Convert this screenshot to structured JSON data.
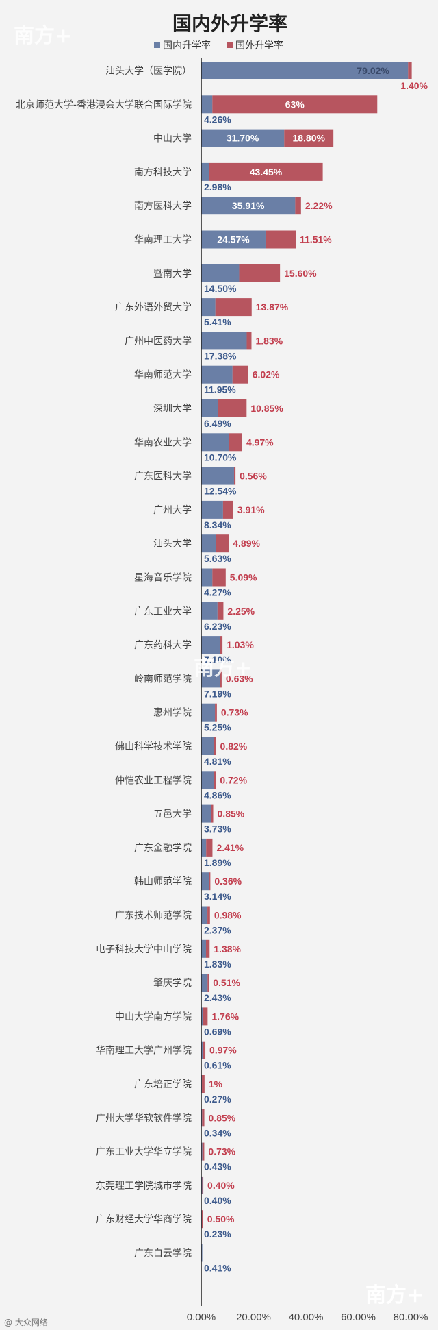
{
  "colors": {
    "domestic": "#6a7fa6",
    "foreign": "#b7555f",
    "domestic_text": "#3d5a8c",
    "foreign_text": "#c23e4e"
  },
  "watermark": "南方+",
  "footer_credit": "@ 大众网络",
  "chart_data": {
    "type": "bar",
    "orientation": "horizontal",
    "stacked": true,
    "title": "国内外升学率",
    "xlim": [
      0,
      80
    ],
    "x_ticks": [
      "0.00%",
      "20.00%",
      "40.00%",
      "60.00%",
      "80.00%"
    ],
    "legend_position": "top",
    "series": [
      {
        "name": "国内升学率",
        "values": [
          79.02,
          4.26,
          31.7,
          2.98,
          35.91,
          24.57,
          14.5,
          5.41,
          17.38,
          11.95,
          6.49,
          10.7,
          12.54,
          8.34,
          5.63,
          4.27,
          6.23,
          7.1,
          7.19,
          5.25,
          4.81,
          4.86,
          3.73,
          1.89,
          3.14,
          2.37,
          1.83,
          2.43,
          0.69,
          0.61,
          0.27,
          0.34,
          0.43,
          0.4,
          0.23,
          0.41
        ]
      },
      {
        "name": "国外升学率",
        "values": [
          1.4,
          63,
          18.8,
          43.45,
          2.22,
          11.51,
          15.6,
          13.87,
          1.83,
          6.02,
          10.85,
          4.97,
          0.56,
          3.91,
          4.89,
          5.09,
          2.25,
          1.03,
          0.63,
          0.73,
          0.82,
          0.72,
          0.85,
          2.41,
          0.36,
          0.98,
          1.38,
          0.51,
          1.76,
          0.97,
          1,
          0.85,
          0.73,
          0.4,
          0.5,
          null
        ]
      }
    ],
    "domestic_labels": [
      "79.02%",
      "4.26%",
      "31.70%",
      "2.98%",
      "35.91%",
      "24.57%",
      "14.50%",
      "5.41%",
      "17.38%",
      "11.95%",
      "6.49%",
      "10.70%",
      "12.54%",
      "8.34%",
      "5.63%",
      "4.27%",
      "6.23%",
      "7.10%",
      "7.19%",
      "5.25%",
      "4.81%",
      "4.86%",
      "3.73%",
      "1.89%",
      "3.14%",
      "2.37%",
      "1.83%",
      "2.43%",
      "0.69%",
      "0.61%",
      "0.27%",
      "0.34%",
      "0.43%",
      "0.40%",
      "0.23%",
      "0.41%"
    ],
    "foreign_labels": [
      "1.40%",
      "63%",
      "18.80%",
      "43.45%",
      "2.22%",
      "11.51%",
      "15.60%",
      "13.87%",
      "1.83%",
      "6.02%",
      "10.85%",
      "4.97%",
      "0.56%",
      "3.91%",
      "4.89%",
      "5.09%",
      "2.25%",
      "1.03%",
      "0.63%",
      "0.73%",
      "0.82%",
      "0.72%",
      "0.85%",
      "2.41%",
      "0.36%",
      "0.98%",
      "1.38%",
      "0.51%",
      "1.76%",
      "0.97%",
      "1%",
      "0.85%",
      "0.73%",
      "0.40%",
      "0.50%",
      ""
    ],
    "categories": [
      "汕头大学（医学院）",
      "北京师范大学-香港浸会大学联合国际学院",
      "中山大学",
      "南方科技大学",
      "南方医科大学",
      "华南理工大学",
      "暨南大学",
      "广东外语外贸大学",
      "广州中医药大学",
      "华南师范大学",
      "深圳大学",
      "华南农业大学",
      "广东医科大学",
      "广州大学",
      "汕头大学",
      "星海音乐学院",
      "广东工业大学",
      "广东药科大学",
      "岭南师范学院",
      "惠州学院",
      "佛山科学技术学院",
      "仲恺农业工程学院",
      "五邑大学",
      "广东金融学院",
      "韩山师范学院",
      "广东技术师范学院",
      "电子科技大学中山学院",
      "肇庆学院",
      "中山大学南方学院",
      "华南理工大学广州学院",
      "广东培正学院",
      "广州大学华软软件学院",
      "广东工业大学华立学院",
      "东莞理工学院城市学院",
      "广东财经大学华商学院",
      "广东白云学院"
    ]
  }
}
